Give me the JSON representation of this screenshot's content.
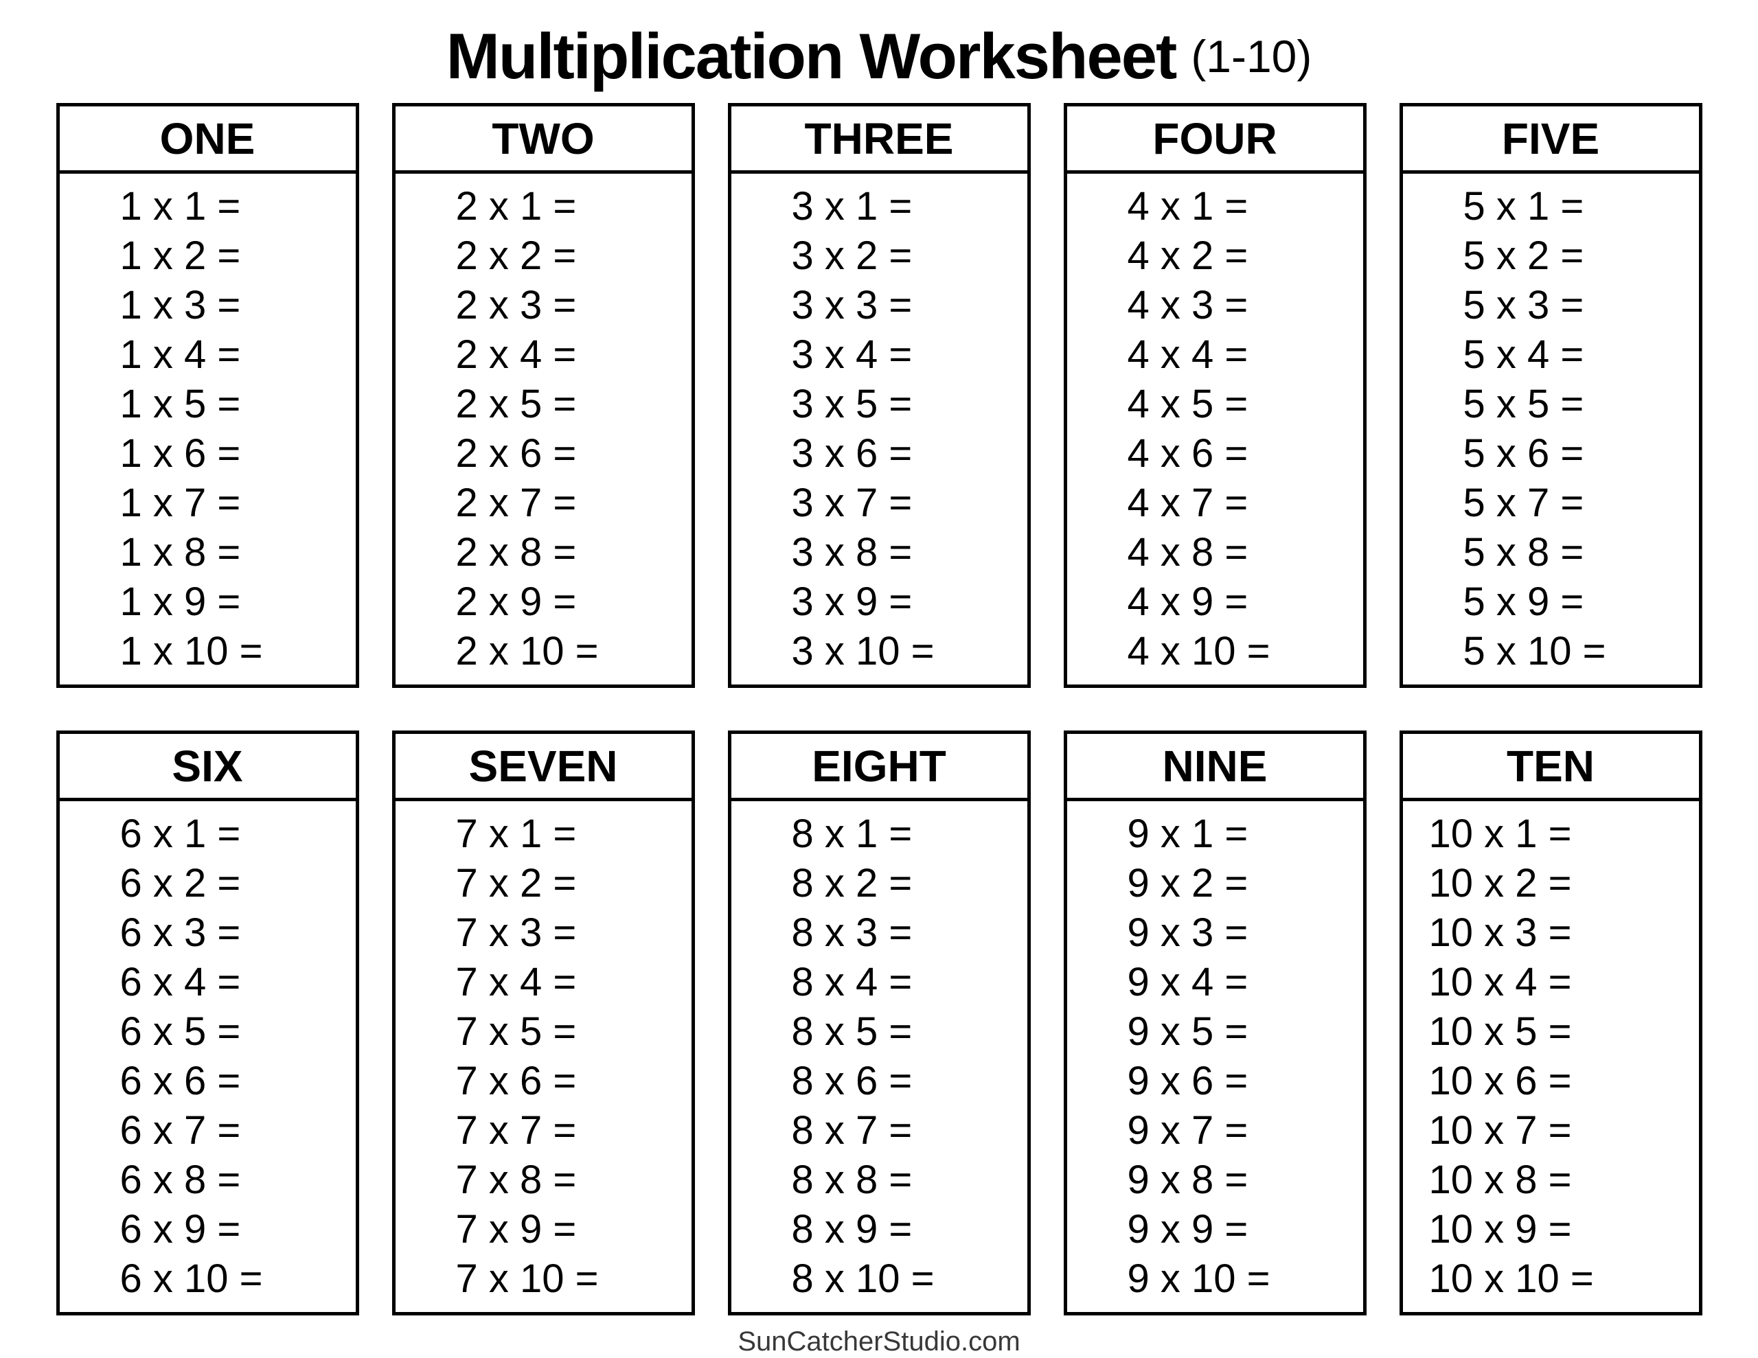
{
  "title": {
    "main": "Multiplication Worksheet",
    "range": "(1-10)"
  },
  "footer": {
    "credit": "SunCatcherStudio.com"
  },
  "colors": {
    "text": "#000000",
    "border": "#000000",
    "footer_text": "#383838",
    "background": "#ffffff"
  },
  "tables": [
    {
      "header": "ONE",
      "rows": [
        "1 x 1 =",
        "1 x 2 =",
        "1 x 3 =",
        "1 x 4 =",
        "1 x 5 =",
        "1 x 6 =",
        "1 x 7 =",
        "1 x 8 =",
        "1 x 9 =",
        "1 x 10 ="
      ]
    },
    {
      "header": "TWO",
      "rows": [
        "2 x 1 =",
        "2 x 2 =",
        "2 x 3 =",
        "2 x 4 =",
        "2 x 5 =",
        "2 x 6 =",
        "2 x 7 =",
        "2 x 8 =",
        "2 x 9 =",
        "2 x 10 ="
      ]
    },
    {
      "header": "THREE",
      "rows": [
        "3 x 1 =",
        "3 x 2 =",
        "3 x 3 =",
        "3 x 4 =",
        "3 x 5 =",
        "3 x 6 =",
        "3 x 7 =",
        "3 x 8 =",
        "3 x 9 =",
        "3 x 10 ="
      ]
    },
    {
      "header": "FOUR",
      "rows": [
        "4 x 1 =",
        "4 x 2 =",
        "4 x 3 =",
        "4 x 4 =",
        "4 x 5 =",
        "4 x 6 =",
        "4 x 7 =",
        "4 x 8 =",
        "4 x 9 =",
        "4 x 10 ="
      ]
    },
    {
      "header": "FIVE",
      "rows": [
        "5 x 1 =",
        "5 x 2 =",
        "5 x 3 =",
        "5 x 4 =",
        "5 x 5 =",
        "5 x 6 =",
        "5 x 7 =",
        "5 x 8 =",
        "5 x 9 =",
        "5 x 10 ="
      ]
    },
    {
      "header": "SIX",
      "rows": [
        "6 x 1 =",
        "6 x 2 =",
        "6 x 3 =",
        "6 x 4 =",
        "6 x 5 =",
        "6 x 6 =",
        "6 x 7 =",
        "6 x 8 =",
        "6 x 9 =",
        "6 x 10 ="
      ]
    },
    {
      "header": "SEVEN",
      "rows": [
        "7 x 1 =",
        "7 x 2 =",
        "7 x 3 =",
        "7 x 4 =",
        "7 x 5 =",
        "7 x 6 =",
        "7 x 7 =",
        "7 x 8 =",
        "7 x 9 =",
        "7 x 10 ="
      ]
    },
    {
      "header": "EIGHT",
      "rows": [
        "8 x 1 =",
        "8 x 2 =",
        "8 x 3 =",
        "8 x 4 =",
        "8 x 5 =",
        "8 x 6 =",
        "8 x 7 =",
        "8 x 8 =",
        "8 x 9 =",
        "8 x 10 ="
      ]
    },
    {
      "header": "NINE",
      "rows": [
        "9 x 1 =",
        "9 x 2 =",
        "9 x 3 =",
        "9 x 4 =",
        "9 x 5 =",
        "9 x 6 =",
        "9 x 7 =",
        "9 x 8 =",
        "9 x 9 =",
        "9 x 10 ="
      ]
    },
    {
      "header": "TEN",
      "rows": [
        "10 x 1 =",
        "10 x 2 =",
        "10 x 3 =",
        "10 x 4 =",
        "10 x 5 =",
        "10 x 6 =",
        "10 x 7 =",
        "10 x 8 =",
        "10 x 9 =",
        "10 x 10 ="
      ]
    }
  ]
}
